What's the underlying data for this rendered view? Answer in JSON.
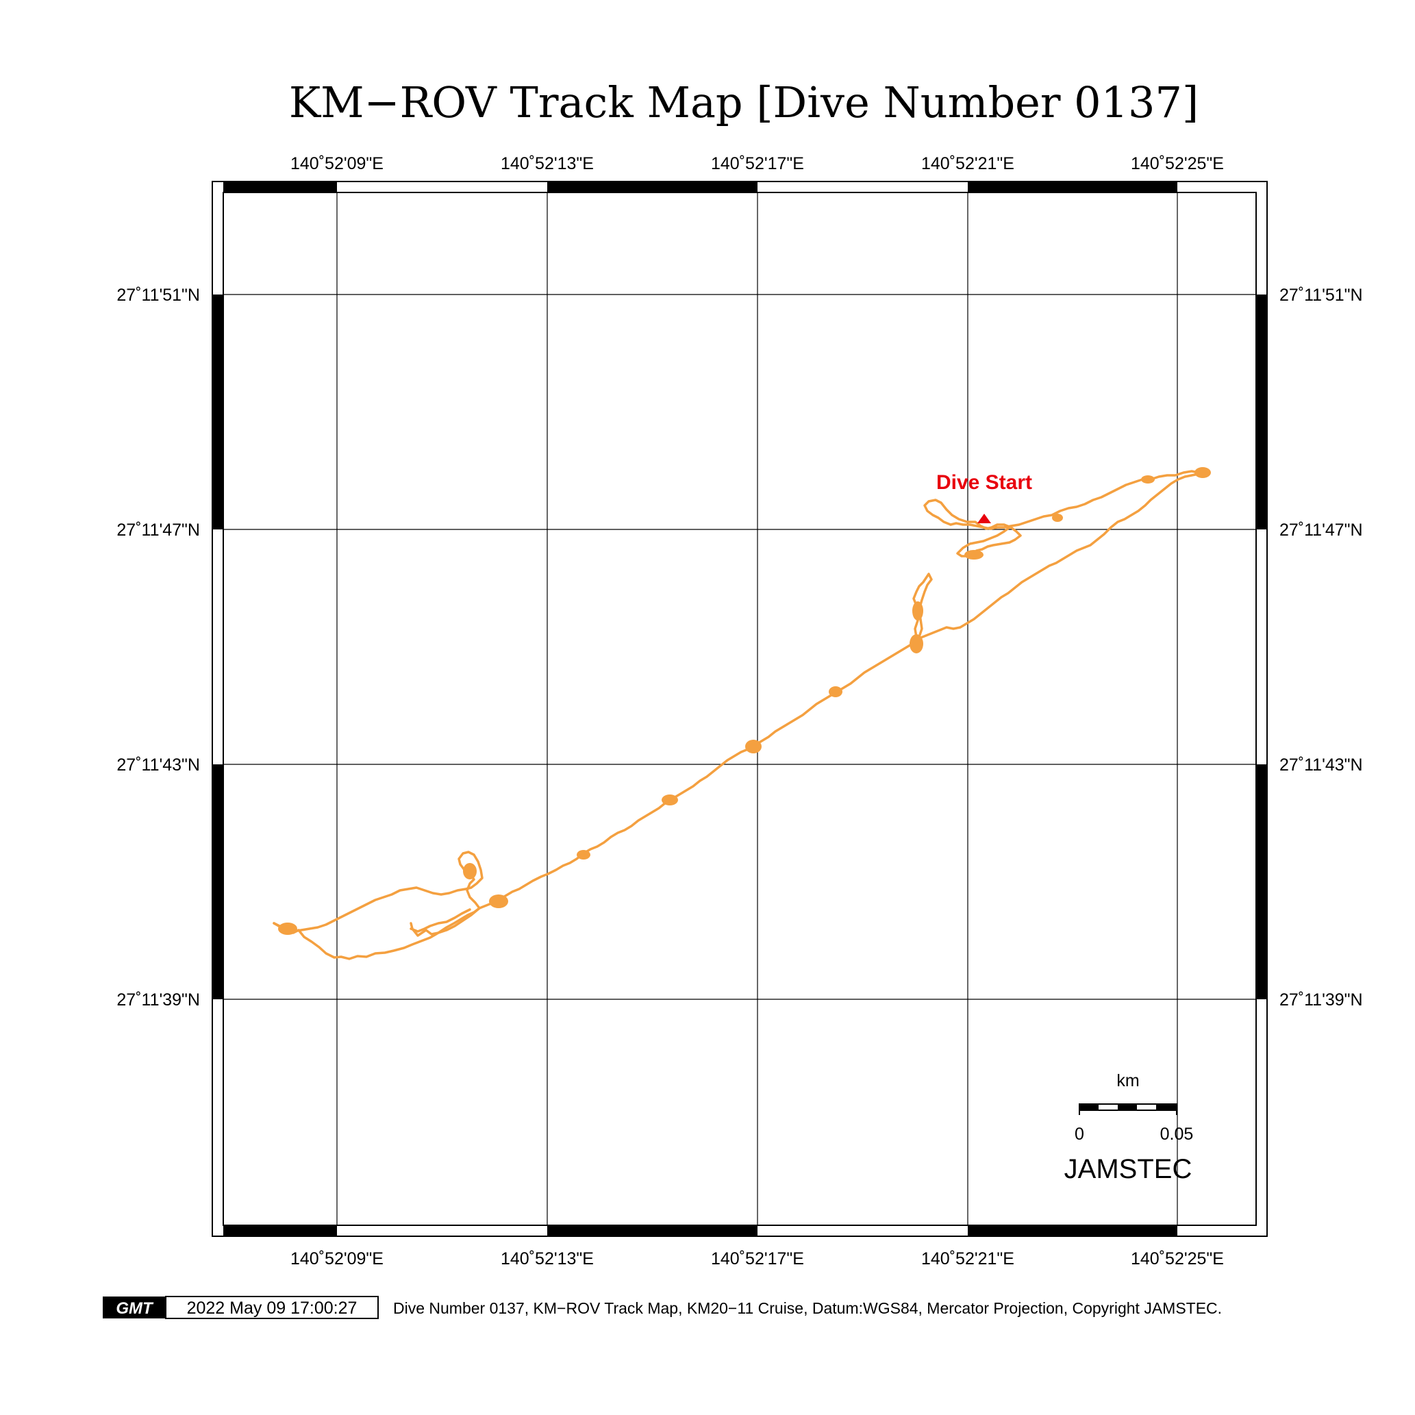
{
  "title": "KM−ROV Track Map [Dive Number 0137]",
  "lon_labels": [
    "140˚52'09\"E",
    "140˚52'13\"E",
    "140˚52'17\"E",
    "140˚52'21\"E",
    "140˚52'25\"E"
  ],
  "lat_labels": [
    "27˚11'51\"N",
    "27˚11'47\"N",
    "27˚11'43\"N",
    "27˚11'39\"N"
  ],
  "dive_start_label": "Dive Start",
  "scale_bar": {
    "unit": "km",
    "left_label": "0",
    "right_label": "0.05"
  },
  "org_label": "JAMSTEC",
  "gmt_logo": "GMT",
  "timestamp": "2022 May 09 17:00:27",
  "footer_text": "Dive Number 0137, KM−ROV Track Map, KM20−11 Cruise, Datum:WGS84, Mercator Projection, Copyright JAMSTEC.",
  "colors": {
    "track": "#f4a040",
    "dive_start": "#e8000d",
    "frame": "#000000"
  }
}
